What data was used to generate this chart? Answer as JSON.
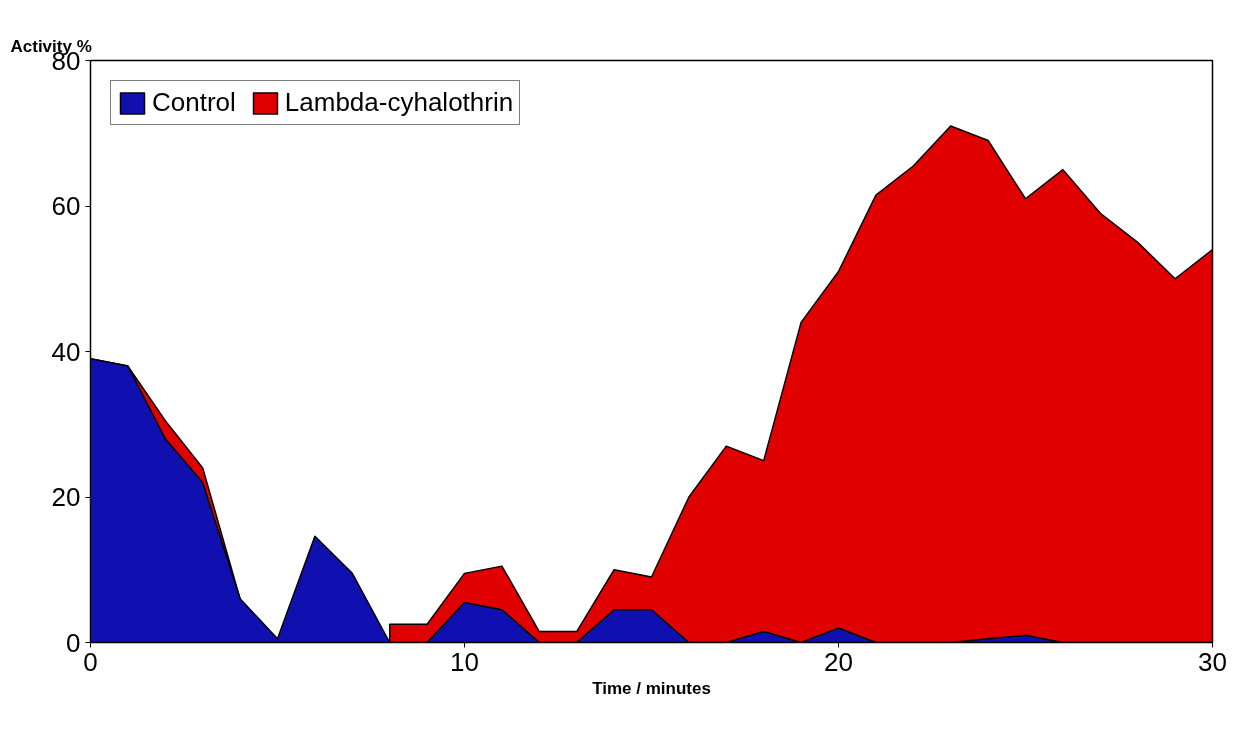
{
  "chart_data": {
    "type": "area",
    "ylabel": "Activity %",
    "xlabel": "Time / minutes",
    "x": [
      0,
      1,
      2,
      3,
      4,
      5,
      6,
      7,
      8,
      9,
      10,
      11,
      12,
      13,
      14,
      15,
      16,
      17,
      18,
      19,
      20,
      21,
      22,
      23,
      24,
      25,
      26,
      27,
      28,
      29,
      30
    ],
    "series": [
      {
        "name": "Control",
        "color": "#1010b0",
        "values": [
          39,
          38,
          28,
          22,
          6,
          0.5,
          14.6,
          9.5,
          0,
          0,
          5.5,
          4.5,
          0,
          0,
          4.5,
          4.5,
          0,
          0,
          1.5,
          0,
          2,
          0,
          0,
          0,
          0.5,
          1,
          0,
          0,
          0,
          0,
          0
        ]
      },
      {
        "name": "Lambda-cyhalothrin",
        "color": "#e00000",
        "values": [
          39,
          38,
          30.5,
          24,
          6,
          null,
          null,
          null,
          2.5,
          2.5,
          9.5,
          10.5,
          1.5,
          1.5,
          10,
          9,
          20,
          27,
          25,
          44,
          51,
          61.5,
          65.5,
          71,
          69,
          61,
          65,
          59,
          55,
          50,
          54
        ]
      }
    ],
    "xlim": [
      0,
      30
    ],
    "xticks": [
      0,
      10,
      20,
      30
    ],
    "ylim": [
      0,
      80
    ],
    "yticks": [
      0,
      20,
      40,
      60,
      80
    ],
    "grid": false,
    "legend": "top left"
  }
}
